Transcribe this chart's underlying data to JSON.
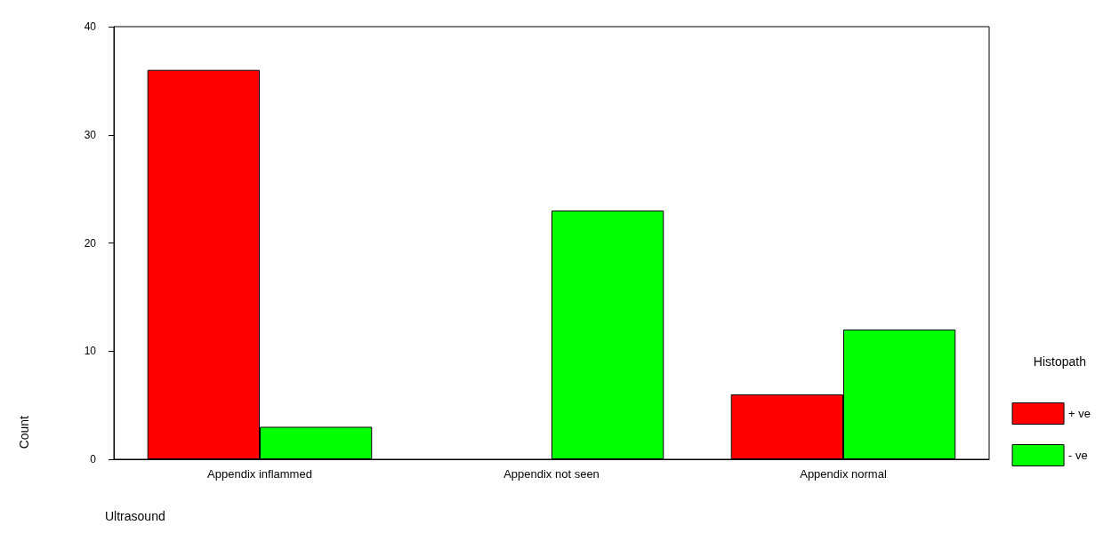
{
  "chart_data": {
    "type": "bar",
    "xlabel": "Ultrasound",
    "ylabel": "Count",
    "legend_title": "Histopath",
    "categories": [
      "Appendix inflammed",
      "Appendix not seen",
      "Appendix normal"
    ],
    "series": [
      {
        "name": "+ ve",
        "color": "#ff0000",
        "values": [
          36,
          0,
          6
        ]
      },
      {
        "name": "- ve",
        "color": "#00ff00",
        "values": [
          3,
          23,
          12
        ]
      }
    ],
    "ylim": [
      0,
      40
    ],
    "yticks": [
      0,
      10,
      20,
      30,
      40
    ],
    "grid": false,
    "legend": "right"
  }
}
